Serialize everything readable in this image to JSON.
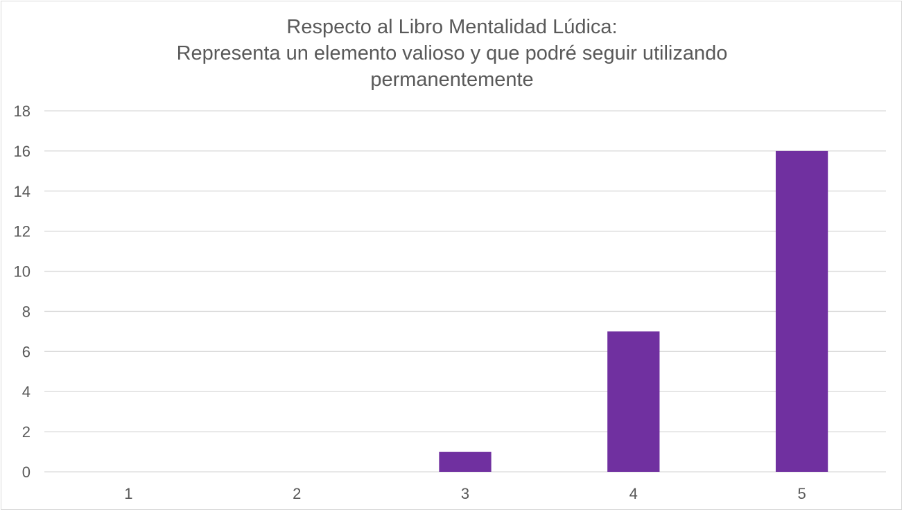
{
  "chart_data": {
    "type": "bar",
    "title_lines": [
      "Respecto al Libro Mentalidad Lúdica:",
      "Representa un elemento valioso y que podré seguir utilizando",
      "permanentemente"
    ],
    "categories": [
      "1",
      "2",
      "3",
      "4",
      "5"
    ],
    "values": [
      0,
      0,
      1,
      7,
      16
    ],
    "ylim": [
      0,
      18
    ],
    "yticks": [
      0,
      2,
      4,
      6,
      8,
      10,
      12,
      14,
      16,
      18
    ],
    "grid": true,
    "legend": "none",
    "bar_color": "#7030a0",
    "grid_color": "#d9d9d9",
    "text_color": "#595959"
  }
}
